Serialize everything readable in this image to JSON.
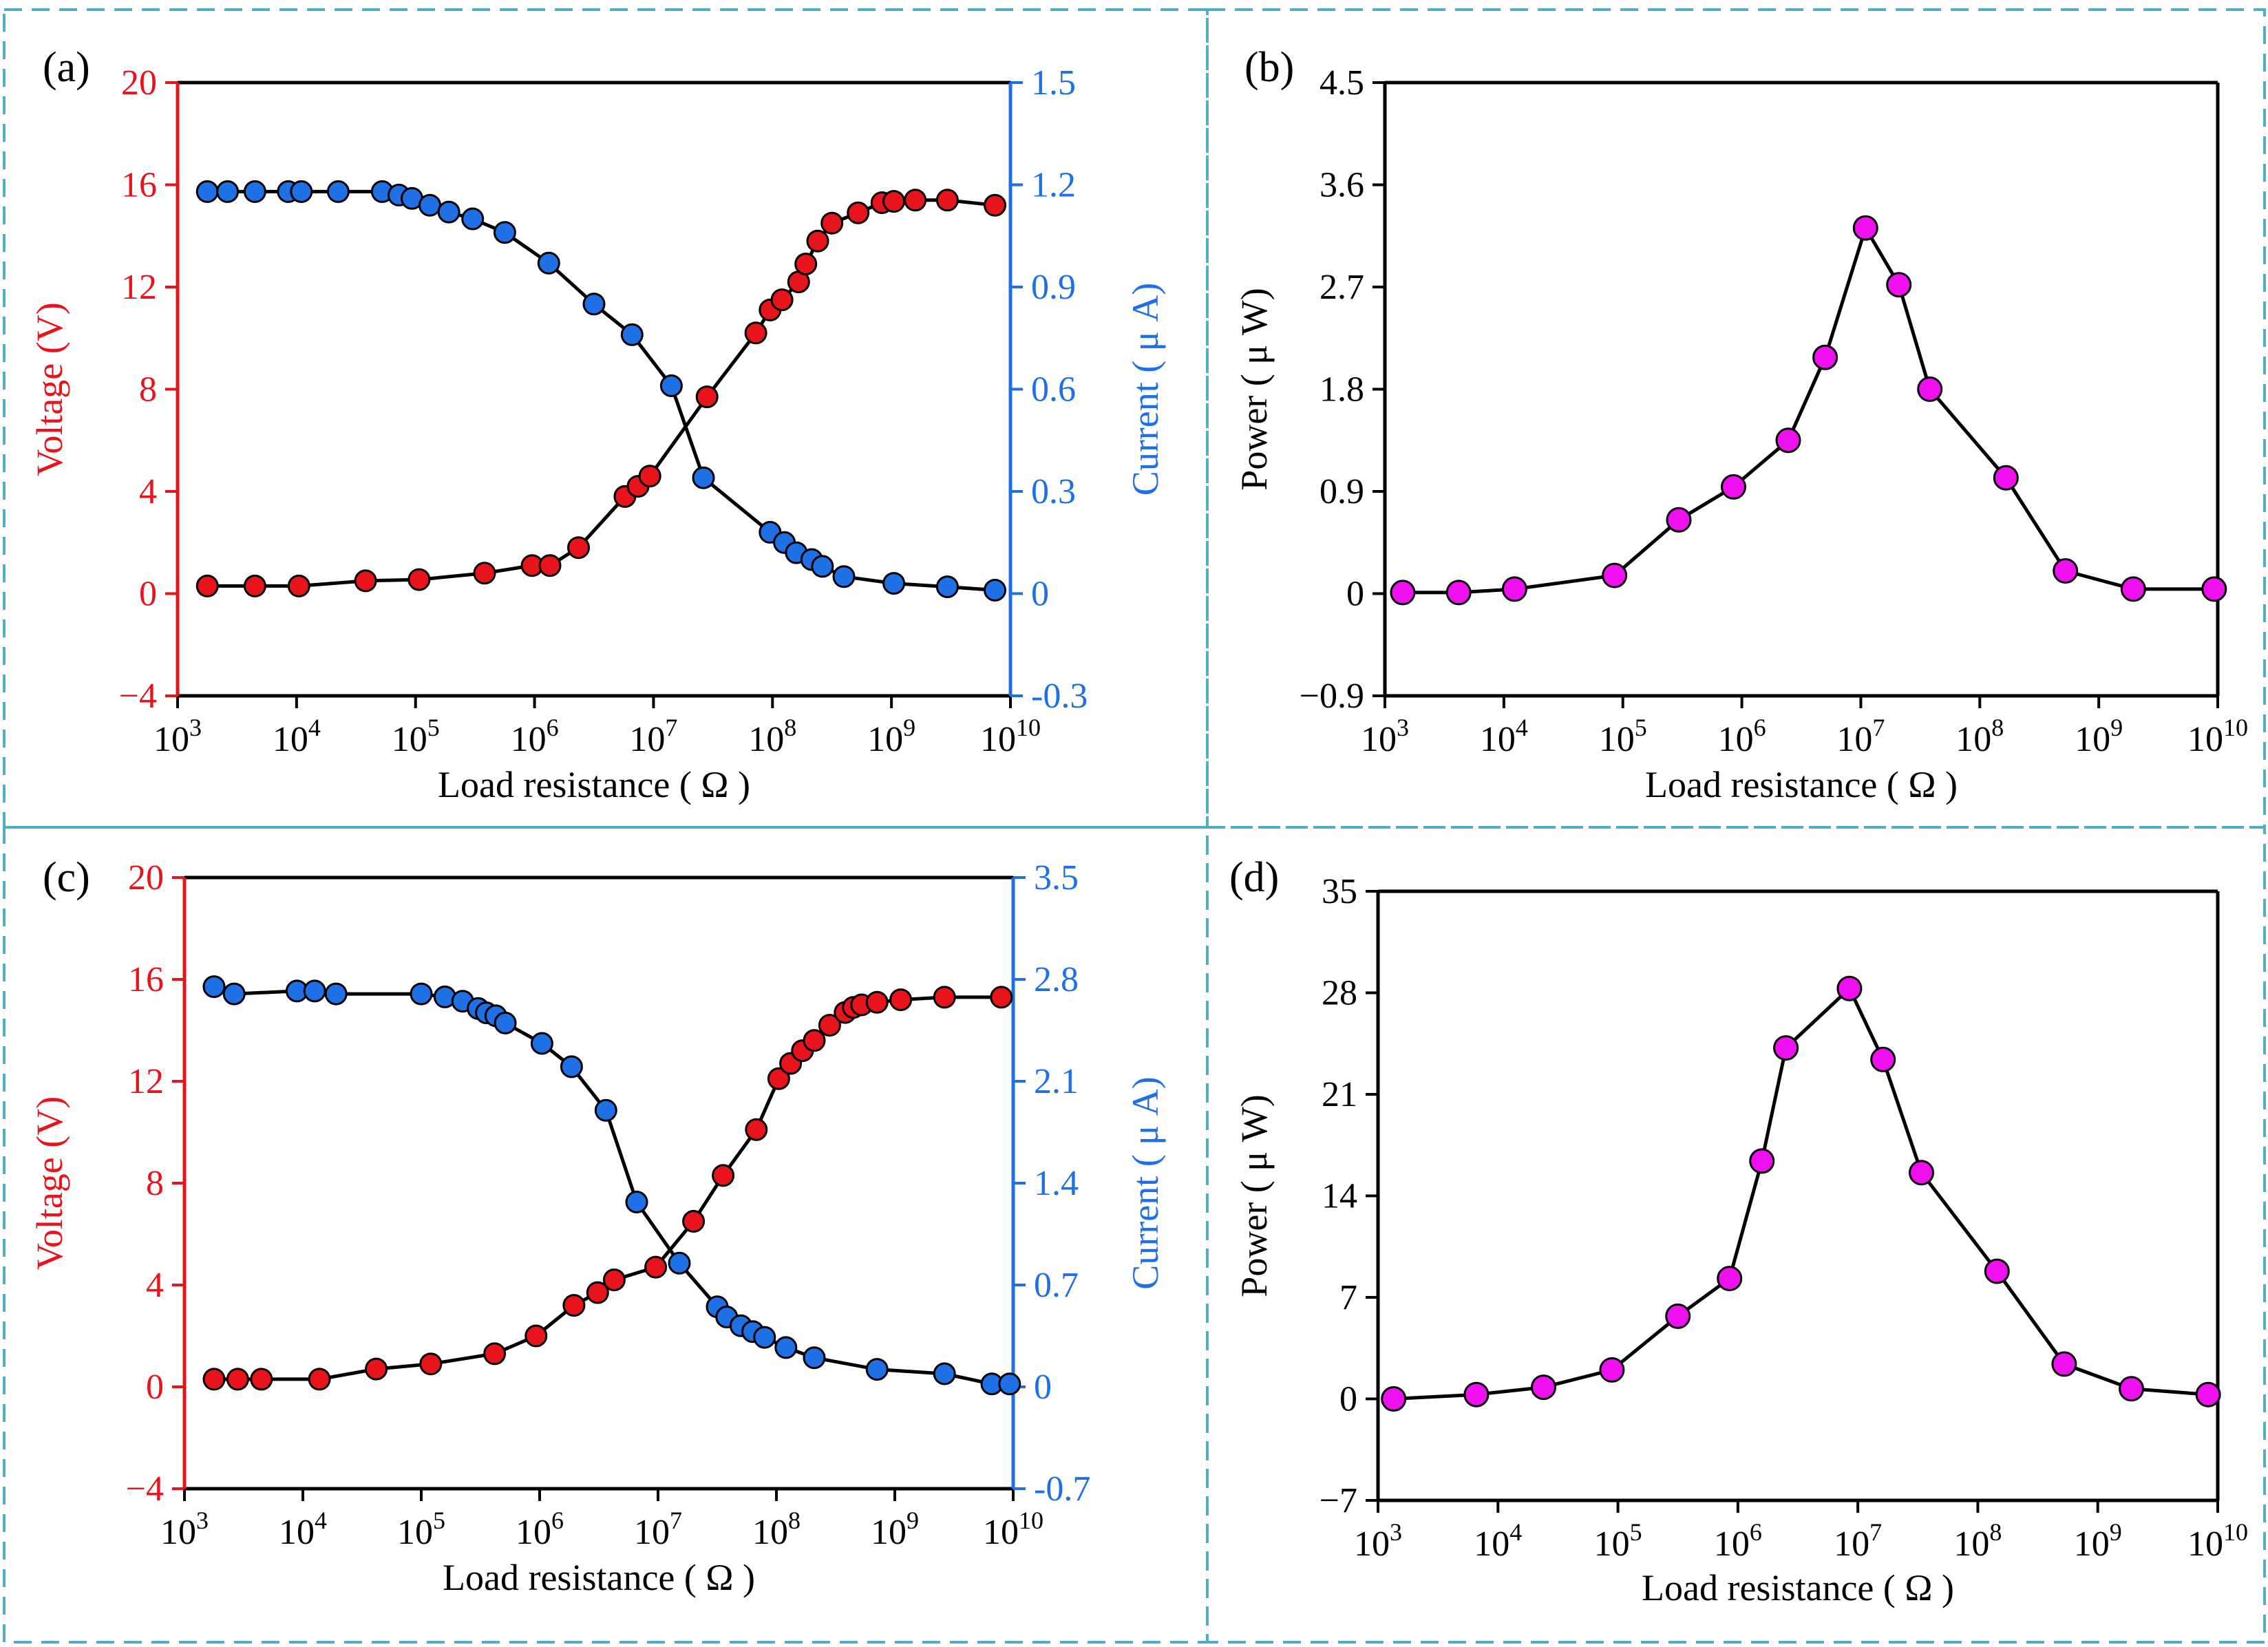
{
  "figure": {
    "colors": {
      "voltage": "#e8141c",
      "current": "#1f6fe5",
      "power": "#ee10ee",
      "line": "#000000",
      "frame": "#4fb0c6"
    }
  },
  "chart_data": [
    {
      "type": "scatter",
      "panel_label": "(a)",
      "xlabel": "Load resistance ( Ω )",
      "x_scale": "log10",
      "xlim": [
        1000,
        10000000000
      ],
      "x_ticks": [
        {
          "base": "10",
          "exp": "3"
        },
        {
          "base": "10",
          "exp": "4"
        },
        {
          "base": "10",
          "exp": "5"
        },
        {
          "base": "10",
          "exp": "6"
        },
        {
          "base": "10",
          "exp": "7"
        },
        {
          "base": "10",
          "exp": "8"
        },
        {
          "base": "10",
          "exp": "9"
        },
        {
          "base": "10",
          "exp": "10"
        }
      ],
      "y_left": {
        "label": "Voltage (V)",
        "range": [
          -4,
          20
        ],
        "ticks": [
          "−4",
          "0",
          "4",
          "8",
          "12",
          "16",
          "20"
        ]
      },
      "y_right": {
        "label": "Current ( μ A)",
        "range": [
          -0.3,
          1.5
        ],
        "ticks": [
          "-0.3",
          "0",
          "0.3",
          "0.6",
          "0.9",
          "1.2",
          "1.5"
        ]
      },
      "series": [
        {
          "name": "Voltage",
          "axis": "left",
          "x_log": [
            3.25,
            3.65,
            4.02,
            4.58,
            5.03,
            5.58,
            5.98,
            6.13,
            6.37,
            6.76,
            6.87,
            6.97,
            7.45,
            7.86,
            7.98,
            8.08,
            8.22,
            8.28,
            8.38,
            8.5,
            8.72,
            8.92,
            9.02,
            9.2,
            9.47,
            9.87
          ],
          "values": [
            0.3,
            0.3,
            0.3,
            0.5,
            0.55,
            0.8,
            1.1,
            1.1,
            1.8,
            3.8,
            4.2,
            4.6,
            7.7,
            10.2,
            11.1,
            11.5,
            12.2,
            12.9,
            13.8,
            14.5,
            14.9,
            15.3,
            15.35,
            15.4,
            15.4,
            15.2
          ]
        },
        {
          "name": "Current",
          "axis": "right",
          "x_log": [
            3.25,
            3.42,
            3.65,
            3.93,
            4.04,
            4.35,
            4.72,
            4.86,
            4.97,
            5.12,
            5.28,
            5.48,
            5.75,
            6.12,
            6.5,
            6.82,
            7.15,
            7.42,
            7.98,
            8.1,
            8.2,
            8.33,
            8.42,
            8.6,
            9.02,
            9.47,
            9.87
          ],
          "values": [
            1.18,
            1.18,
            1.18,
            1.18,
            1.18,
            1.18,
            1.18,
            1.17,
            1.16,
            1.14,
            1.12,
            1.1,
            1.06,
            0.97,
            0.85,
            0.76,
            0.61,
            0.34,
            0.18,
            0.15,
            0.12,
            0.1,
            0.08,
            0.05,
            0.03,
            0.02,
            0.01
          ]
        }
      ]
    },
    {
      "type": "line",
      "panel_label": "(b)",
      "xlabel": "Load resistance ( Ω )",
      "x_scale": "log10",
      "xlim": [
        1000,
        10000000000
      ],
      "x_ticks": [
        {
          "base": "10",
          "exp": "3"
        },
        {
          "base": "10",
          "exp": "4"
        },
        {
          "base": "10",
          "exp": "5"
        },
        {
          "base": "10",
          "exp": "6"
        },
        {
          "base": "10",
          "exp": "7"
        },
        {
          "base": "10",
          "exp": "8"
        },
        {
          "base": "10",
          "exp": "9"
        },
        {
          "base": "10",
          "exp": "10"
        }
      ],
      "y_left": {
        "label": "Power ( μ W)",
        "range": [
          -0.9,
          4.5
        ],
        "ticks": [
          "−0.9",
          "0",
          "0.9",
          "1.8",
          "2.7",
          "3.6",
          "4.5"
        ]
      },
      "series": [
        {
          "name": "Power",
          "axis": "left",
          "x_log": [
            3.15,
            3.62,
            4.09,
            4.93,
            5.47,
            5.93,
            6.39,
            6.7,
            7.04,
            7.32,
            7.58,
            8.22,
            8.72,
            9.29,
            9.97
          ],
          "values": [
            0.01,
            0.01,
            0.04,
            0.16,
            0.65,
            0.94,
            1.35,
            2.08,
            3.22,
            2.72,
            1.8,
            1.02,
            0.2,
            0.04,
            0.04
          ]
        }
      ]
    },
    {
      "type": "scatter",
      "panel_label": "(c)",
      "xlabel": "Load resistance ( Ω )",
      "x_scale": "log10",
      "xlim": [
        1000,
        10000000000
      ],
      "x_ticks": [
        {
          "base": "10",
          "exp": "3"
        },
        {
          "base": "10",
          "exp": "4"
        },
        {
          "base": "10",
          "exp": "5"
        },
        {
          "base": "10",
          "exp": "6"
        },
        {
          "base": "10",
          "exp": "7"
        },
        {
          "base": "10",
          "exp": "8"
        },
        {
          "base": "10",
          "exp": "9"
        },
        {
          "base": "10",
          "exp": "10"
        }
      ],
      "y_left": {
        "label": "Voltage (V)",
        "range": [
          -4,
          20
        ],
        "ticks": [
          "−4",
          "0",
          "4",
          "8",
          "12",
          "16",
          "20"
        ]
      },
      "y_right": {
        "label": "Current ( μ A)",
        "range": [
          -0.7,
          3.5
        ],
        "ticks": [
          "-0.7",
          "0",
          "0.7",
          "1.4",
          "2.1",
          "2.8",
          "3.5"
        ]
      },
      "series": [
        {
          "name": "Voltage",
          "axis": "left",
          "x_log": [
            3.25,
            3.45,
            3.65,
            4.14,
            4.62,
            5.08,
            5.62,
            5.97,
            6.29,
            6.49,
            6.63,
            6.98,
            7.3,
            7.55,
            7.83,
            8.02,
            8.12,
            8.22,
            8.32,
            8.45,
            8.58,
            8.65,
            8.72,
            8.85,
            9.05,
            9.42,
            9.9
          ],
          "values": [
            0.3,
            0.3,
            0.3,
            0.3,
            0.7,
            0.9,
            1.3,
            2.0,
            3.2,
            3.7,
            4.2,
            4.7,
            6.5,
            8.3,
            10.1,
            12.1,
            12.7,
            13.2,
            13.6,
            14.2,
            14.7,
            14.9,
            15.0,
            15.1,
            15.2,
            15.3,
            15.3
          ]
        },
        {
          "name": "Current",
          "axis": "right",
          "x_log": [
            3.25,
            3.42,
            3.95,
            4.1,
            4.28,
            5.0,
            5.2,
            5.35,
            5.48,
            5.55,
            5.63,
            5.71,
            6.02,
            6.27,
            6.56,
            6.82,
            7.18,
            7.5,
            7.58,
            7.7,
            7.8,
            7.9,
            8.08,
            8.32,
            8.85,
            9.42,
            9.82,
            9.97
          ],
          "values": [
            2.75,
            2.7,
            2.72,
            2.72,
            2.7,
            2.7,
            2.68,
            2.65,
            2.6,
            2.57,
            2.55,
            2.5,
            2.36,
            2.2,
            1.9,
            1.27,
            0.85,
            0.55,
            0.48,
            0.42,
            0.38,
            0.34,
            0.27,
            0.2,
            0.12,
            0.09,
            0.02,
            0.02
          ]
        }
      ]
    },
    {
      "type": "line",
      "panel_label": "(d)",
      "xlabel": "Load resistance ( Ω )",
      "x_scale": "log10",
      "xlim": [
        1000,
        10000000000
      ],
      "x_ticks": [
        {
          "base": "10",
          "exp": "3"
        },
        {
          "base": "10",
          "exp": "4"
        },
        {
          "base": "10",
          "exp": "5"
        },
        {
          "base": "10",
          "exp": "6"
        },
        {
          "base": "10",
          "exp": "7"
        },
        {
          "base": "10",
          "exp": "8"
        },
        {
          "base": "10",
          "exp": "9"
        },
        {
          "base": "10",
          "exp": "10"
        }
      ],
      "y_left": {
        "label": "Power ( μ W)",
        "range": [
          -7,
          35
        ],
        "ticks": [
          "−7",
          "0",
          "7",
          "14",
          "21",
          "28",
          "35"
        ]
      },
      "series": [
        {
          "name": "Power",
          "axis": "left",
          "x_log": [
            3.13,
            3.82,
            4.38,
            4.95,
            5.5,
            5.93,
            6.2,
            6.4,
            6.93,
            7.21,
            7.53,
            8.16,
            8.72,
            9.28,
            9.92
          ],
          "values": [
            0.0,
            0.3,
            0.8,
            2.0,
            5.7,
            8.3,
            16.4,
            24.2,
            28.3,
            23.4,
            15.6,
            8.8,
            2.4,
            0.7,
            0.3
          ]
        }
      ]
    }
  ]
}
